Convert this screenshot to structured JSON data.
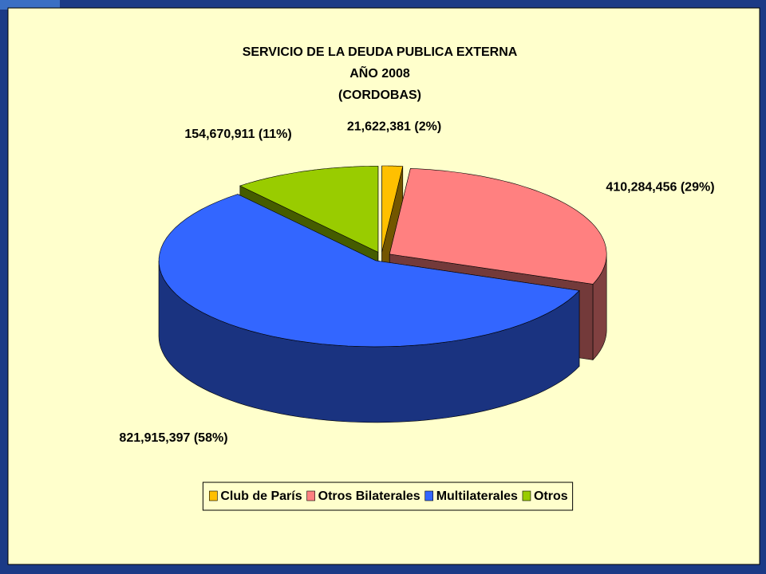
{
  "chart_data": {
    "type": "pie",
    "title": [
      "SERVICIO DE LA DEUDA PUBLICA EXTERNA",
      "AÑO 2008",
      "(CORDOBAS)"
    ],
    "categories": [
      "Club de París",
      "Otros Bilaterales",
      "Multilaterales",
      "Otros"
    ],
    "values": [
      21622381,
      410284456,
      821915397,
      154670911
    ],
    "value_labels": [
      "21,622,381 (2%)",
      "410,284,456 (29%)",
      "821,915,397 (58%)",
      "154,670,911 (11%)"
    ],
    "colors": [
      "#ffc000",
      "#ff8080",
      "#3366ff",
      "#99cc00"
    ],
    "legend": "bottom"
  }
}
